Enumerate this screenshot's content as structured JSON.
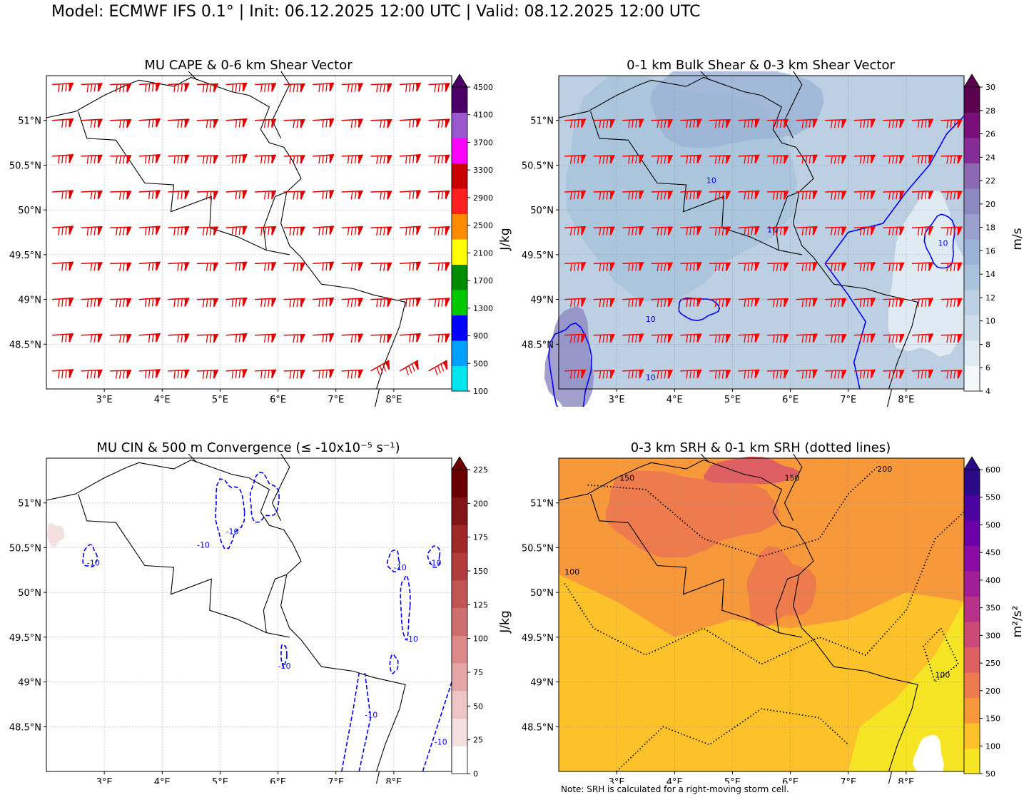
{
  "suptitle": "Model: ECMWF IFS 0.1° | Init: 06.12.2025 12:00 UTC | Valid: 08.12.2025 12:00 UTC",
  "note": "Note: SRH is calculated for a right-moving storm cell.",
  "chart_data": [
    {
      "type": "heatmap",
      "title": "MU CAPE & 0-6 km Shear Vector",
      "xticks": [
        "3°E",
        "4°E",
        "5°E",
        "6°E",
        "7°E",
        "8°E"
      ],
      "yticks": [
        "51°N",
        "50.5°N",
        "50°N",
        "49.5°N",
        "49°N",
        "48.5°N"
      ],
      "xlim": [
        2,
        9
      ],
      "ylim": [
        48,
        51.5
      ],
      "colorbar": {
        "label": "J/kg",
        "ticks": [
          "100",
          "500",
          "900",
          "1300",
          "1700",
          "2100",
          "2500",
          "2900",
          "3300",
          "3700",
          "4100",
          "4500"
        ],
        "colors": [
          "#00e5ee",
          "#00a0ff",
          "#0000ff",
          "#00c800",
          "#008c00",
          "#ffff00",
          "#ff8c00",
          "#ff2020",
          "#c80000",
          "#ff00ff",
          "#9b59d0",
          "#4b0068"
        ],
        "extend": "max"
      },
      "barb_color": "#e00000"
    },
    {
      "type": "heatmap",
      "title": "0-1 km Bulk Shear & 0-3 km Shear Vector",
      "xticks": [
        "3°E",
        "4°E",
        "5°E",
        "6°E",
        "7°E",
        "8°E"
      ],
      "yticks": [
        "51°N",
        "50.5°N",
        "50°N",
        "49.5°N",
        "49°N",
        "48.5°N"
      ],
      "xlim": [
        2,
        9
      ],
      "ylim": [
        48,
        51.5
      ],
      "colorbar": {
        "label": "m/s",
        "ticks": [
          "4",
          "6",
          "8",
          "10",
          "12",
          "14",
          "16",
          "18",
          "20",
          "22",
          "24",
          "26",
          "28",
          "30"
        ],
        "colors": [
          "#f4f8fb",
          "#e0ebf3",
          "#cddce9",
          "#bccfe3",
          "#a9c3dc",
          "#9bb3d6",
          "#9aa1cf",
          "#8c88c0",
          "#8a68b2",
          "#852c98",
          "#7a0f79",
          "#5b004e"
        ],
        "extend": "max"
      },
      "contour_label": "10",
      "barb_color": "#ff0000"
    },
    {
      "type": "heatmap",
      "title": "MU CIN & 500 m Convergence (≤ -10x10⁻⁵ s⁻¹)",
      "xticks": [
        "3°E",
        "4°E",
        "5°E",
        "6°E",
        "7°E",
        "8°E"
      ],
      "yticks": [
        "51°N",
        "50.5°N",
        "50°N",
        "49.5°N",
        "49°N",
        "48.5°N"
      ],
      "xlim": [
        2,
        9
      ],
      "ylim": [
        48,
        51.5
      ],
      "colorbar": {
        "label": "J/kg",
        "ticks": [
          "0",
          "25",
          "50",
          "75",
          "100",
          "125",
          "150",
          "175",
          "200",
          "225"
        ],
        "colors": [
          "#ffffff",
          "#f5e0e0",
          "#eec6c6",
          "#e4a6a6",
          "#dc8a8a",
          "#cf6e6e",
          "#c35555",
          "#b23c3c",
          "#9e2828",
          "#821515",
          "#6a0000"
        ],
        "extend": "max"
      },
      "contour_label": "-10"
    },
    {
      "type": "heatmap",
      "title": "0-3 km SRH & 0-1 km SRH (dotted lines)",
      "xticks": [
        "3°E",
        "4°E",
        "5°E",
        "6°E",
        "7°E",
        "8°E"
      ],
      "yticks": [
        "51°N",
        "50.5°N",
        "50°N",
        "49.5°N",
        "49°N",
        "48.5°N"
      ],
      "xlim": [
        2,
        9
      ],
      "ylim": [
        48,
        51.5
      ],
      "colorbar": {
        "label": "m²/s²",
        "ticks": [
          "50",
          "100",
          "150",
          "200",
          "250",
          "300",
          "350",
          "400",
          "450",
          "500",
          "550",
          "600"
        ],
        "colors": [
          "#f6e524",
          "#fdc12a",
          "#f7983a",
          "#ee7b4e",
          "#df6062",
          "#cd4a76",
          "#b83289",
          "#a21d99",
          "#8a0aa4",
          "#6c00a8",
          "#4a02a0",
          "#2b0a8a"
        ],
        "extend": "max"
      },
      "contour_labels": [
        "100",
        "150",
        "200"
      ]
    }
  ]
}
